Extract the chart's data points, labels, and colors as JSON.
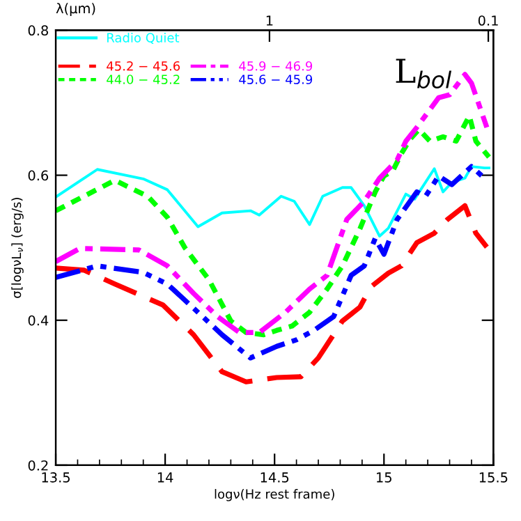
{
  "chart_data": {
    "type": "line",
    "xlabel": "logν(Hz rest frame)",
    "ylabel": "σ[logνL$_{ν}$] (erg/s)",
    "x2label": "λ(μm)",
    "annotations": [
      "L$_{bol}$"
    ],
    "xlim": [
      13.5,
      15.5
    ],
    "xticks": [
      13.5,
      14,
      14.5,
      15,
      15.5
    ],
    "ylim": [
      0.2,
      0.8
    ],
    "yticks": [
      0.2,
      0.4,
      0.6,
      0.8
    ],
    "x2lim": [
      9.48,
      0.0948
    ],
    "x2ticks": [
      1,
      0.1
    ],
    "log": "x2",
    "legend": "top left",
    "grid": false,
    "series": [
      {
        "name": "Radio Quiet",
        "color": "#00ffff",
        "line_style": "solid",
        "x": [
          13.5,
          13.69,
          13.9,
          14.01,
          14.15,
          14.26,
          14.39,
          14.43,
          14.53,
          14.59,
          14.66,
          14.72,
          14.81,
          14.85,
          14.91,
          14.98,
          15.02,
          15.1,
          15.14,
          15.23,
          15.27,
          15.31,
          15.37,
          15.4,
          15.46,
          15.48
        ],
        "values": [
          0.57,
          0.608,
          0.595,
          0.58,
          0.529,
          0.548,
          0.551,
          0.545,
          0.571,
          0.564,
          0.532,
          0.571,
          0.583,
          0.583,
          0.558,
          0.516,
          0.527,
          0.574,
          0.567,
          0.609,
          0.577,
          0.59,
          0.596,
          0.612,
          0.61,
          0.61
        ]
      },
      {
        "name": "45.2 − 45.6",
        "color": "#ff0000",
        "line_style": "dashed",
        "x": [
          13.5,
          13.63,
          13.77,
          13.99,
          14.13,
          14.26,
          14.37,
          14.51,
          14.62,
          14.7,
          14.81,
          14.89,
          14.94,
          15.02,
          15.08,
          15.15,
          15.23,
          15.29,
          15.37,
          15.42,
          15.47
        ],
        "values": [
          0.472,
          0.469,
          0.45,
          0.421,
          0.38,
          0.329,
          0.315,
          0.321,
          0.322,
          0.348,
          0.399,
          0.418,
          0.446,
          0.465,
          0.475,
          0.507,
          0.52,
          0.539,
          0.558,
          0.52,
          0.501
        ]
      },
      {
        "name": "44.0 − 45.2",
        "color": "#00ff00",
        "line_style": "dotted",
        "x": [
          13.5,
          13.77,
          13.92,
          14.01,
          14.09,
          14.2,
          14.3,
          14.37,
          14.45,
          14.51,
          14.58,
          14.66,
          14.74,
          14.81,
          14.89,
          14.96,
          15.0,
          15.04,
          15.08,
          15.12,
          15.16,
          15.21,
          15.27,
          15.33,
          15.39,
          15.42,
          15.48
        ],
        "values": [
          0.551,
          0.593,
          0.571,
          0.542,
          0.5,
          0.456,
          0.399,
          0.383,
          0.38,
          0.386,
          0.392,
          0.411,
          0.443,
          0.475,
          0.526,
          0.577,
          0.599,
          0.606,
          0.63,
          0.65,
          0.663,
          0.647,
          0.653,
          0.647,
          0.682,
          0.647,
          0.625
        ]
      },
      {
        "name": "45.9 − 46.9",
        "color": "#ff00ff",
        "line_style": "dashdot",
        "x": [
          13.5,
          13.61,
          13.88,
          14.01,
          14.13,
          14.24,
          14.34,
          14.43,
          14.55,
          14.66,
          14.74,
          14.83,
          14.91,
          14.98,
          15.06,
          15.1,
          15.15,
          15.25,
          15.3,
          15.37,
          15.4,
          15.47
        ],
        "values": [
          0.481,
          0.499,
          0.497,
          0.475,
          0.437,
          0.405,
          0.383,
          0.383,
          0.411,
          0.443,
          0.462,
          0.539,
          0.564,
          0.596,
          0.621,
          0.647,
          0.666,
          0.707,
          0.711,
          0.739,
          0.727,
          0.666
        ]
      },
      {
        "name": "45.6 − 45.9",
        "color": "#0000ff",
        "line_style": "dashdotdot",
        "x": [
          13.5,
          13.69,
          13.9,
          14.01,
          14.15,
          14.26,
          14.39,
          14.51,
          14.6,
          14.68,
          14.77,
          14.85,
          14.91,
          14.96,
          15.0,
          15.06,
          15.15,
          15.19,
          15.25,
          15.31,
          15.4,
          15.47
        ],
        "values": [
          0.459,
          0.475,
          0.466,
          0.45,
          0.411,
          0.38,
          0.348,
          0.364,
          0.373,
          0.386,
          0.405,
          0.462,
          0.475,
          0.513,
          0.491,
          0.539,
          0.577,
          0.571,
          0.599,
          0.587,
          0.612,
          0.593
        ]
      }
    ]
  }
}
